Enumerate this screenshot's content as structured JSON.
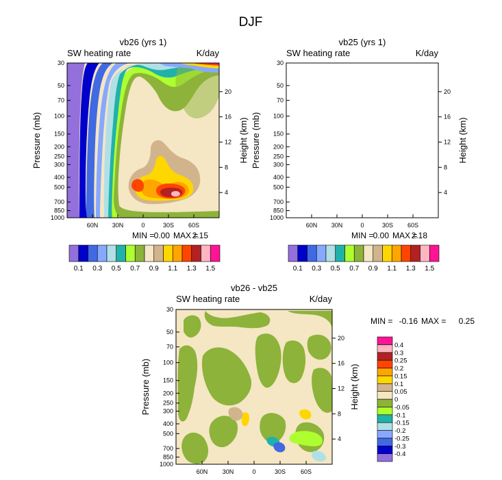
{
  "page_title": "DJF",
  "chart_data": [
    {
      "id": "vb26",
      "type": "contour",
      "title": "vb26 (yrs 1)",
      "left_string": "SW heating rate",
      "right_string": "K/day",
      "ylabel": "Pressure (mb)",
      "y2label": "Height (km)",
      "xticks": [
        "60N",
        "30N",
        "0",
        "30S",
        "60S"
      ],
      "xtick_lat": [
        60,
        30,
        0,
        -30,
        -60
      ],
      "xlim": [
        90,
        -90
      ],
      "yticks": [
        "30",
        "50",
        "70",
        "100",
        "150",
        "200",
        "250",
        "300",
        "400",
        "500",
        "700",
        "850",
        "1000"
      ],
      "ytick_p": [
        30,
        50,
        70,
        100,
        150,
        200,
        250,
        300,
        400,
        500,
        700,
        850,
        1000
      ],
      "ylim": [
        30,
        1000
      ],
      "y2ticks": [
        "20",
        "16",
        "12",
        "8",
        "4"
      ],
      "y2tick_km": [
        20,
        16,
        12,
        8,
        4
      ],
      "min_label": "MIN =",
      "min_value": "0.00",
      "max_label": "MAX =",
      "max_value": "2.15",
      "colorbar": {
        "labels": [
          "0.1",
          "0.3",
          "0.5",
          "0.7",
          "0.9",
          "1.1",
          "1.3",
          "1.5"
        ],
        "colors": [
          "#9370db",
          "#0000cd",
          "#4169e1",
          "#87a8ff",
          "#b0e0e6",
          "#20b2aa",
          "#adff2f",
          "#8db33a",
          "#f5e6c4",
          "#d2b48c",
          "#ffd700",
          "#ffa500",
          "#ff4500",
          "#b22222",
          "#ffb6c1",
          "#ff1493"
        ]
      }
    },
    {
      "id": "vb25",
      "type": "contour",
      "title": "vb25 (yrs 1)",
      "left_string": "SW heating rate",
      "right_string": "K/day",
      "ylabel": "Pressure (mb)",
      "y2label": "Height (km)",
      "xticks": [
        "60N",
        "30N",
        "0",
        "30S",
        "60S"
      ],
      "xtick_lat": [
        60,
        30,
        0,
        -30,
        -60
      ],
      "xlim": [
        90,
        -90
      ],
      "yticks": [
        "30",
        "50",
        "70",
        "100",
        "150",
        "200",
        "250",
        "300",
        "400",
        "500",
        "700",
        "850",
        "1000"
      ],
      "ytick_p": [
        30,
        50,
        70,
        100,
        150,
        200,
        250,
        300,
        400,
        500,
        700,
        850,
        1000
      ],
      "ylim": [
        30,
        1000
      ],
      "y2ticks": [
        "20",
        "16",
        "12",
        "8",
        "4"
      ],
      "y2tick_km": [
        20,
        16,
        12,
        8,
        4
      ],
      "min_label": "MIN =",
      "min_value": "0.00",
      "max_label": "MAX =",
      "max_value": "2.18",
      "colorbar": {
        "labels": [
          "0.1",
          "0.3",
          "0.5",
          "0.7",
          "0.9",
          "1.1",
          "1.3",
          "1.5"
        ],
        "colors": [
          "#9370db",
          "#0000cd",
          "#4169e1",
          "#87a8ff",
          "#b0e0e6",
          "#20b2aa",
          "#adff2f",
          "#8db33a",
          "#f5e6c4",
          "#d2b48c",
          "#ffd700",
          "#ffa500",
          "#ff4500",
          "#b22222",
          "#ffb6c1",
          "#ff1493"
        ]
      }
    },
    {
      "id": "diff",
      "type": "contour",
      "title": "vb26 - vb25",
      "left_string": "SW heating rate",
      "right_string": "K/day",
      "ylabel": "Pressure (mb)",
      "y2label": "Height (km)",
      "xticks": [
        "60N",
        "30N",
        "0",
        "30S",
        "60S"
      ],
      "xtick_lat": [
        60,
        30,
        0,
        -30,
        -60
      ],
      "xlim": [
        90,
        -90
      ],
      "yticks": [
        "30",
        "50",
        "70",
        "100",
        "150",
        "200",
        "250",
        "300",
        "400",
        "500",
        "700",
        "850",
        "1000"
      ],
      "ytick_p": [
        30,
        50,
        70,
        100,
        150,
        200,
        250,
        300,
        400,
        500,
        700,
        850,
        1000
      ],
      "ylim": [
        30,
        1000
      ],
      "y2ticks": [
        "20",
        "16",
        "12",
        "8",
        "4"
      ],
      "y2tick_km": [
        20,
        16,
        12,
        8,
        4
      ],
      "min_label": "MIN =",
      "min_value": "-0.16",
      "max_label": "MAX =",
      "max_value": "0.25",
      "colorbar": {
        "labels": [
          "-0.4",
          "-0.3",
          "-0.25",
          "-0.2",
          "-0.15",
          "-0.1",
          "-0.05",
          "0",
          "0.05",
          "0.1",
          "0.15",
          "0.2",
          "0.25",
          "0.3",
          "0.4"
        ],
        "colors": [
          "#9370db",
          "#0000cd",
          "#4169e1",
          "#87a8ff",
          "#b0e0e6",
          "#20b2aa",
          "#adff2f",
          "#8db33a",
          "#f5e6c4",
          "#d2b48c",
          "#ffd700",
          "#ffa500",
          "#ff4500",
          "#b22222",
          "#ffb6c1",
          "#ff1493"
        ]
      }
    }
  ]
}
